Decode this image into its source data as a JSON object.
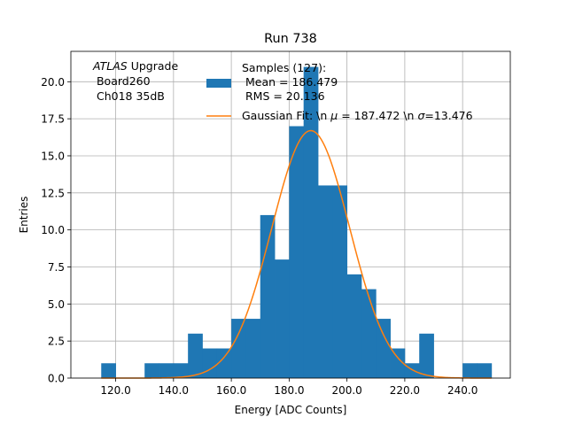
{
  "chart_data": {
    "type": "bar",
    "title": "Run 738",
    "xlabel": "Energy [ADC Counts]",
    "ylabel": "Entries",
    "xlim": [
      104.5,
      256.5
    ],
    "ylim": [
      0,
      22.05
    ],
    "xticks": [
      120,
      140,
      160,
      180,
      200,
      220,
      240
    ],
    "xtick_labels": [
      "120.0",
      "140.0",
      "160.0",
      "180.0",
      "200.0",
      "220.0",
      "240.0"
    ],
    "yticks": [
      0,
      2.5,
      5,
      7.5,
      10,
      12.5,
      15,
      17.5,
      20
    ],
    "ytick_labels": [
      "0.0",
      "2.5",
      "5.0",
      "7.5",
      "10.0",
      "12.5",
      "15.0",
      "17.5",
      "20.0"
    ],
    "grid": true,
    "legend_position": "upper-right",
    "bar_color": "#1f77b4",
    "fit_color": "#ff7f0e",
    "histogram": {
      "name": "Samples (127):\n Mean = 186.479\n RMS = 20.136",
      "bin_edges": [
        115,
        120,
        125,
        130,
        135,
        140,
        145,
        150,
        155,
        160,
        165,
        170,
        175,
        180,
        185,
        190,
        195,
        200,
        205,
        210,
        215,
        220,
        225,
        230,
        235,
        240,
        245,
        250
      ],
      "counts": [
        1,
        0,
        0,
        1,
        1,
        1,
        3,
        2,
        2,
        4,
        4,
        11,
        8,
        17,
        21,
        13,
        13,
        7,
        6,
        4,
        2,
        1,
        3,
        0,
        0,
        1,
        1
      ]
    },
    "fit": {
      "name": "Gaussian Fit: \\n $\\mu$ = 187.472 \\n $\\sigma$=13.476",
      "mu": 187.472,
      "sigma": 13.476,
      "amplitude": 16.7,
      "x_range": [
        115,
        250
      ]
    },
    "annotation": {
      "line1_italic": "ATLAS",
      "line1_rest": " Upgrade",
      "line2": " Board260",
      "line3": " Ch018 35dB"
    },
    "legend": {
      "samples_lines": [
        "Samples (127):",
        " Mean = 186.479",
        " RMS = 20.136"
      ],
      "fit_prefix": "Gaussian Fit: \\n ",
      "fit_mu_symbol": "μ",
      "fit_mid": " = 187.472 \\n ",
      "fit_sigma_symbol": "σ",
      "fit_suffix": "=13.476"
    }
  }
}
